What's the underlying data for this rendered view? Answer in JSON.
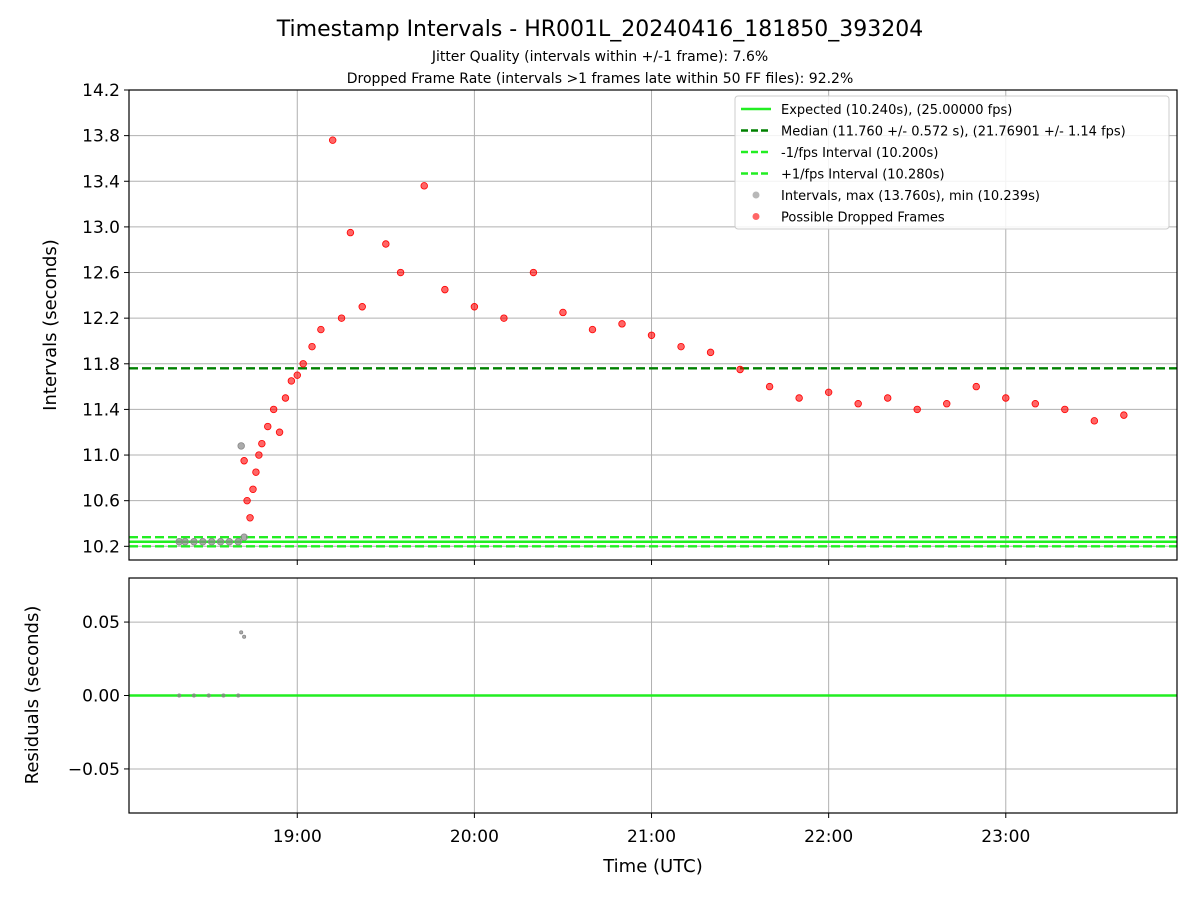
{
  "title": "Timestamp Intervals - HR001L_20240416_181850_393204",
  "subtitle1": "Jitter Quality (intervals within +/-1 frame): 7.6%",
  "subtitle2": "Dropped Frame Rate (intervals >1 frames late within 50 FF files): 92.2%",
  "chart_data": [
    {
      "type": "scatter",
      "xlabel": "",
      "ylabel": "Intervals (seconds)",
      "xlim": [
        "18:03",
        "23:58"
      ],
      "ylim": [
        10.08,
        14.2
      ],
      "yticks": [
        "10.2",
        "10.6",
        "11.0",
        "11.4",
        "11.8",
        "12.2",
        "12.6",
        "13.0",
        "13.4",
        "13.8",
        "14.2"
      ],
      "grid": true,
      "legend_placement": "top-right",
      "reference_lines": [
        {
          "name": "Expected (10.240s), (25.00000 fps)",
          "y": 10.24,
          "style": "solid",
          "color": "#22ee22"
        },
        {
          "name": "Median (11.760 +/- 0.572 s), (21.76901 +/- 1.14 fps)",
          "y": 11.76,
          "style": "dashed",
          "color": "#008000"
        },
        {
          "name": "-1/fps Interval (10.200s)",
          "y": 10.2,
          "style": "dashed",
          "color": "#22ee22"
        },
        {
          "name": "+1/fps Interval (10.280s)",
          "y": 10.28,
          "style": "dashed",
          "color": "#22ee22"
        }
      ],
      "series": [
        {
          "name": "Intervals, max (13.760s), min (10.239s)",
          "color": "#888888",
          "points": [
            [
              "18:20",
              10.24
            ],
            [
              "18:22",
              10.24
            ],
            [
              "18:25",
              10.24
            ],
            [
              "18:28",
              10.24
            ],
            [
              "18:31",
              10.24
            ],
            [
              "18:34",
              10.24
            ],
            [
              "18:37",
              10.24
            ],
            [
              "18:40",
              10.24
            ],
            [
              "18:41",
              11.08
            ],
            [
              "18:42",
              10.28
            ]
          ]
        },
        {
          "name": "Possible Dropped Frames",
          "color": "#ff0000",
          "points": [
            [
              "18:42",
              10.95
            ],
            [
              "18:43",
              10.6
            ],
            [
              "18:44",
              10.45
            ],
            [
              "18:45",
              10.7
            ],
            [
              "18:46",
              10.85
            ],
            [
              "18:47",
              11.0
            ],
            [
              "18:48",
              11.1
            ],
            [
              "18:50",
              11.25
            ],
            [
              "18:52",
              11.4
            ],
            [
              "18:54",
              11.2
            ],
            [
              "18:56",
              11.5
            ],
            [
              "18:58",
              11.65
            ],
            [
              "19:00",
              11.7
            ],
            [
              "19:02",
              11.8
            ],
            [
              "19:05",
              11.95
            ],
            [
              "19:08",
              12.1
            ],
            [
              "19:12",
              13.76
            ],
            [
              "19:15",
              12.2
            ],
            [
              "19:18",
              12.95
            ],
            [
              "19:22",
              12.3
            ],
            [
              "19:30",
              12.85
            ],
            [
              "19:35",
              12.6
            ],
            [
              "19:43",
              13.36
            ],
            [
              "19:50",
              12.45
            ],
            [
              "20:00",
              12.3
            ],
            [
              "20:10",
              12.2
            ],
            [
              "20:20",
              12.6
            ],
            [
              "20:30",
              12.25
            ],
            [
              "20:40",
              12.1
            ],
            [
              "20:50",
              12.15
            ],
            [
              "21:00",
              12.05
            ],
            [
              "21:10",
              11.95
            ],
            [
              "21:20",
              11.9
            ],
            [
              "21:30",
              11.75
            ],
            [
              "21:40",
              11.6
            ],
            [
              "21:50",
              11.5
            ],
            [
              "22:00",
              11.55
            ],
            [
              "22:10",
              11.45
            ],
            [
              "22:20",
              11.5
            ],
            [
              "22:30",
              11.4
            ],
            [
              "22:40",
              11.45
            ],
            [
              "22:50",
              11.6
            ],
            [
              "23:00",
              11.5
            ],
            [
              "23:10",
              11.45
            ],
            [
              "23:20",
              11.4
            ],
            [
              "23:30",
              11.3
            ],
            [
              "23:40",
              11.35
            ]
          ]
        }
      ]
    },
    {
      "type": "scatter",
      "xlabel": "Time (UTC)",
      "ylabel": "Residuals (seconds)",
      "xlim": [
        "18:03",
        "23:58"
      ],
      "ylim": [
        -0.08,
        0.08
      ],
      "xticks": [
        "19:00",
        "20:00",
        "21:00",
        "22:00",
        "23:00"
      ],
      "yticks": [
        "−0.05",
        "0.00",
        "0.05"
      ],
      "grid": true,
      "reference_lines": [
        {
          "name": "zero",
          "y": 0.0,
          "style": "solid",
          "color": "#22ee22"
        }
      ],
      "series": [
        {
          "name": "residuals",
          "color": "#888888",
          "points": [
            [
              "18:20",
              0.0
            ],
            [
              "18:25",
              0.0
            ],
            [
              "18:30",
              0.0
            ],
            [
              "18:35",
              0.0
            ],
            [
              "18:40",
              0.0
            ],
            [
              "18:41",
              0.043
            ],
            [
              "18:42",
              0.04
            ]
          ]
        }
      ]
    }
  ],
  "legend": [
    {
      "label": "Expected (10.240s), (25.00000 fps)",
      "kind": "line-solid",
      "color": "#22ee22"
    },
    {
      "label": "Median (11.760 +/- 0.572 s), (21.76901 +/- 1.14 fps)",
      "kind": "line-dashed",
      "color": "#008000"
    },
    {
      "label": "-1/fps Interval (10.200s)",
      "kind": "line-dashed",
      "color": "#22ee22"
    },
    {
      "label": "+1/fps Interval (10.280s)",
      "kind": "line-dashed",
      "color": "#22ee22"
    },
    {
      "label": "Intervals, max (13.760s), min (10.239s)",
      "kind": "marker",
      "color": "#888888"
    },
    {
      "label": "Possible Dropped Frames",
      "kind": "marker",
      "color": "#ff0000"
    }
  ]
}
